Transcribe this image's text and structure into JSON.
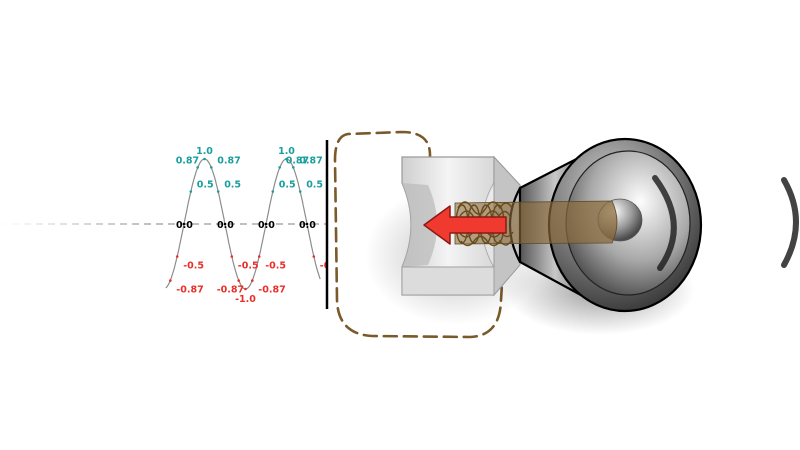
{
  "wave_panel": {
    "amplitude_max": 1.0,
    "amplitude_min": -1.0,
    "label_values": [
      "1.0",
      "0.87",
      "0.5",
      "0.0",
      "-0.5",
      "-0.87",
      "-1.0"
    ],
    "points": [
      {
        "phase_deg": -210,
        "text": "-0.5"
      },
      {
        "phase_deg": -240,
        "text": "-0.87"
      },
      {
        "phase_deg": -180,
        "text": "0.0"
      },
      {
        "phase_deg": -150,
        "text": "0.5"
      },
      {
        "phase_deg": -120,
        "text": "0.87"
      },
      {
        "phase_deg": -90,
        "text": "1.0"
      },
      {
        "phase_deg": -60,
        "text": "0.87"
      },
      {
        "phase_deg": -30,
        "text": "0.5"
      },
      {
        "phase_deg": 0,
        "text": "0.0"
      },
      {
        "phase_deg": 30,
        "text": "-0.5"
      },
      {
        "phase_deg": 60,
        "text": "-0.87"
      },
      {
        "phase_deg": 90,
        "text": "-1.0"
      },
      {
        "phase_deg": 120,
        "text": "-0.87"
      },
      {
        "phase_deg": 150,
        "text": "-0.5"
      },
      {
        "phase_deg": 180,
        "text": "0.0"
      },
      {
        "phase_deg": 210,
        "text": "0.5"
      },
      {
        "phase_deg": 240,
        "text": "0.87"
      },
      {
        "phase_deg": 270,
        "text": "1.0"
      },
      {
        "phase_deg": 300,
        "text": "0.87"
      },
      {
        "phase_deg": 330,
        "text": "0.5"
      },
      {
        "phase_deg": 360,
        "text": "0.0"
      },
      {
        "phase_deg": 390,
        "text": "-0.5"
      }
    ],
    "colors": {
      "positive": "#1a9e9e",
      "zero": "#000000",
      "negative": "#e8302a",
      "curve": "#888888",
      "frame": "#000000"
    }
  },
  "colors": {
    "arrow_fill": "#f03a30",
    "arrow_stroke": "#8a1a12",
    "dashed_outline": "#7a5a2a",
    "beam": "#9a7a4a",
    "speaker_dark": "#333333",
    "speaker_light": "#f2f2f2"
  },
  "icons": {
    "magnet": "bar-magnet-icon",
    "arrow": "left-arrow-icon",
    "coil": "coil-icon",
    "speaker": "loudspeaker-icon",
    "sound_wave": "sound-wave-arc-icon"
  }
}
